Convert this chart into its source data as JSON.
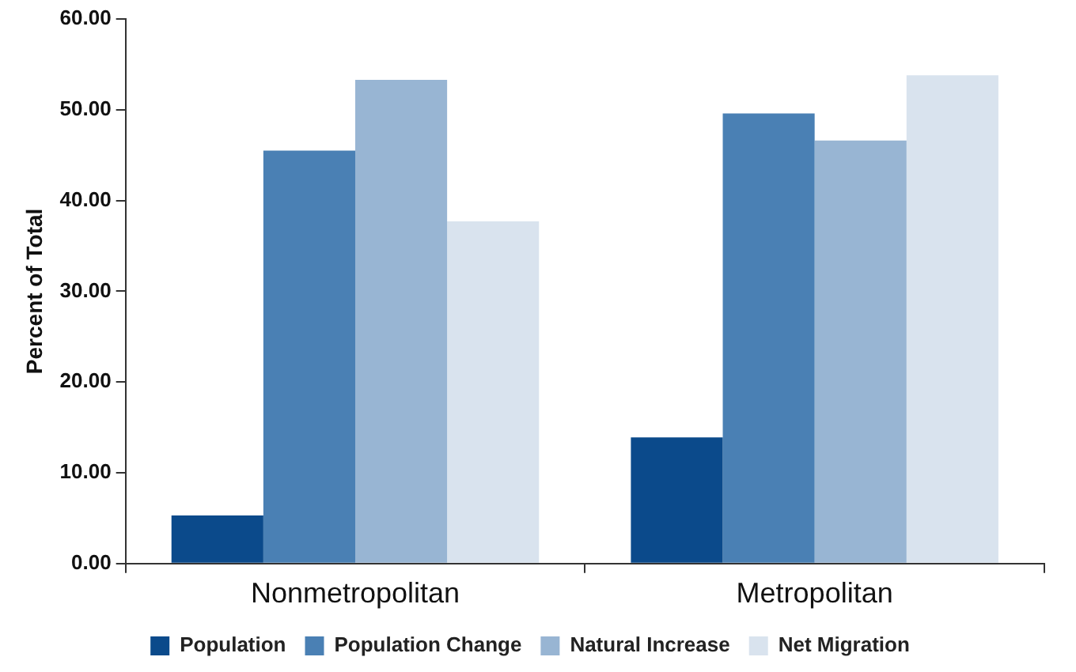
{
  "chart_data": {
    "type": "bar",
    "ylabel": "Percent of Total",
    "categories": [
      "Nonmetropolitan",
      "Metropolitan"
    ],
    "series": [
      {
        "name": "Population",
        "color": "#0b4a8b",
        "values": [
          5.3,
          13.9
        ]
      },
      {
        "name": "Population Change",
        "color": "#4a80b4",
        "values": [
          45.5,
          49.6
        ]
      },
      {
        "name": "Natural Increase",
        "color": "#98b5d3",
        "values": [
          53.3,
          46.6
        ]
      },
      {
        "name": "Net Migration",
        "color": "#d9e3ee",
        "values": [
          37.7,
          53.8
        ]
      }
    ],
    "ylim": [
      0,
      60
    ],
    "yticks": [
      {
        "value": 0,
        "label": "0.00"
      },
      {
        "value": 10,
        "label": "10.00"
      },
      {
        "value": 20,
        "label": "20.00"
      },
      {
        "value": 30,
        "label": "30.00"
      },
      {
        "value": 40,
        "label": "40.00"
      },
      {
        "value": 50,
        "label": "50.00"
      },
      {
        "value": 60,
        "label": "60.00"
      }
    ],
    "grid": false,
    "legend": "bottom"
  }
}
